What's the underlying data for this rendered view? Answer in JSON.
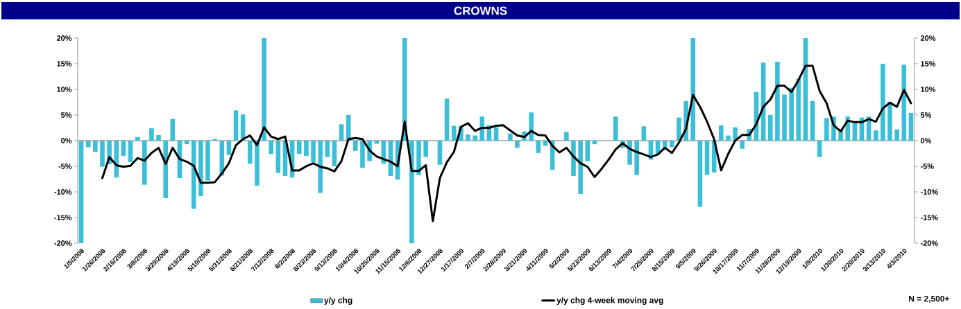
{
  "chart_data": {
    "type": "bar",
    "title": "CROWNS",
    "categories": [
      "1/5/2008",
      null,
      null,
      "1/26/2008",
      null,
      null,
      "2/16/2008",
      null,
      null,
      "3/8/2008",
      null,
      null,
      "3/29/2008",
      null,
      null,
      "4/19/2008",
      null,
      null,
      "5/10/2008",
      null,
      null,
      "5/31/2008",
      null,
      null,
      "6/21/2008",
      null,
      null,
      "7/12/2008",
      null,
      null,
      "8/2/2008",
      null,
      null,
      "8/23/2008",
      null,
      null,
      "9/13/2008",
      null,
      null,
      "10/4/2008",
      null,
      null,
      "10/25/2008",
      null,
      null,
      "11/15/2008",
      null,
      null,
      "12/6/2008",
      null,
      null,
      "12/27/2008",
      null,
      null,
      "1/17/2009",
      null,
      null,
      "2/7/2009",
      null,
      null,
      "2/28/2009",
      null,
      null,
      "3/21/2009",
      null,
      null,
      "4/11/2009",
      null,
      null,
      "5/2/2009",
      null,
      null,
      "5/23/2009",
      null,
      null,
      "6/13/2009",
      null,
      null,
      "7/4/2009",
      null,
      null,
      "7/25/2009",
      null,
      null,
      "8/15/2009",
      null,
      null,
      "9/5/2009",
      null,
      null,
      "9/26/2009",
      null,
      null,
      "10/17/2009",
      null,
      null,
      "11/7/2009",
      null,
      null,
      "11/28/2009",
      null,
      null,
      "12/19/2009",
      null,
      null,
      "1/9/2010",
      null,
      null,
      "1/30/2010",
      null,
      null,
      "2/20/2010",
      null,
      null,
      "3/13/2010",
      null,
      null,
      "4/3/2010",
      null
    ],
    "series": [
      {
        "name": "y/y chg",
        "color": "#3bbfd8",
        "values": [
          -20,
          -1.3,
          -2.2,
          -5.1,
          -4.6,
          -7.2,
          -3.0,
          -4.2,
          0.7,
          -8.6,
          2.4,
          1.1,
          -11.2,
          4.2,
          -7.3,
          -0.7,
          -13.3,
          -10.8,
          -7.8,
          0.3,
          -6.8,
          -2.8,
          5.9,
          5.1,
          -4.5,
          -8.8,
          20,
          -2.6,
          -6.3,
          -6.9,
          -7.2,
          -2.6,
          -3.0,
          -4.2,
          -10.2,
          -3.2,
          -5.0,
          3.2,
          5.0,
          -2.0,
          -5.3,
          -4.0,
          -0.6,
          -4.5,
          -6.9,
          -7.6,
          20,
          -20,
          -6.7,
          -3.2,
          null,
          -4.7,
          8.2,
          2.9,
          2.8,
          1.2,
          1.0,
          4.7,
          3.0,
          2.6,
          null,
          1.4,
          -1.4,
          1.8,
          5.5,
          -2.4,
          -1.0,
          -5.7,
          null,
          1.7,
          -6.9,
          -10.4,
          -4.0,
          -0.7,
          null,
          null,
          4.7,
          -1.4,
          -4.7,
          -6.7,
          2.8,
          -3.7,
          -2.8,
          -1.5,
          -1.3,
          4.5,
          7.7,
          20,
          -12.9,
          -6.7,
          -6.2,
          3.0,
          1.0,
          2.6,
          -1.6,
          2.3,
          9.5,
          15.2,
          5.0,
          15.4,
          9.0,
          10.3,
          12.1,
          20,
          7.7,
          -3.2,
          4.4,
          4.7,
          2.3,
          4.7,
          3.7,
          4.5,
          4.7,
          2.0,
          15.0,
          7.6,
          2.2,
          14.8,
          5.4
        ]
      },
      {
        "name": "y/y chg 4-week moving avg",
        "type": "line",
        "color": "#000000",
        "values": [
          null,
          null,
          null,
          -7.3,
          -3.2,
          -4.8,
          -5.1,
          -4.9,
          -3.4,
          -3.9,
          -2.4,
          -1.4,
          -4.5,
          -1.4,
          -3.6,
          -4.1,
          -4.9,
          -8.2,
          -8.2,
          -8.1,
          -6.4,
          -4.4,
          -0.9,
          0.3,
          1.0,
          -0.9,
          2.6,
          0.8,
          0.3,
          0.8,
          -5.8,
          -5.8,
          -5.0,
          -4.4,
          -5.1,
          -5.4,
          -6.0,
          -4.0,
          0.3,
          0.5,
          0.3,
          -1.9,
          -3.1,
          -3.6,
          -4.1,
          -5.0,
          3.7,
          -5.9,
          -5.9,
          -4.8,
          -15.7,
          -7.3,
          -4.2,
          -2.2,
          2.7,
          3.4,
          1.9,
          2.5,
          2.5,
          2.9,
          3.0,
          2.0,
          1.0,
          0.7,
          1.9,
          1.1,
          1.0,
          -1.0,
          -2.3,
          -1.4,
          -3.1,
          -4.4,
          -5.1,
          -7.1,
          -5.5,
          -3.7,
          -1.7,
          -0.5,
          -1.6,
          -2.2,
          -2.7,
          -3.2,
          -2.7,
          -1.4,
          -2.4,
          -0.4,
          2.3,
          8.9,
          6.6,
          3.7,
          0.3,
          -5.8,
          -2.6,
          0.0,
          1.1,
          1.1,
          3.2,
          6.6,
          8.0,
          10.7,
          10.7,
          9.5,
          11.8,
          14.6,
          14.6,
          9.7,
          7.3,
          3.0,
          1.8,
          3.9,
          3.6,
          3.6,
          4.2,
          3.7,
          6.3,
          7.4,
          6.6,
          9.9,
          7.3
        ]
      }
    ],
    "ylim": [
      -20,
      20
    ],
    "yticks": [
      {
        "value": -20,
        "label": "-20%"
      },
      {
        "value": -15,
        "label": "-15%"
      },
      {
        "value": -10,
        "label": "-10%"
      },
      {
        "value": -5,
        "label": "-5%"
      },
      {
        "value": 0,
        "label": "0%"
      },
      {
        "value": 5,
        "label": "5%"
      },
      {
        "value": 10,
        "label": "10%"
      },
      {
        "value": 15,
        "label": "15%"
      },
      {
        "value": 20,
        "label": "20%"
      }
    ],
    "y2lim": [
      -20,
      20
    ],
    "y2ticks": [
      {
        "value": -20,
        "label": "-20%"
      },
      {
        "value": -15,
        "label": "-15%"
      },
      {
        "value": -10,
        "label": "-10%"
      },
      {
        "value": -5,
        "label": "-5%"
      },
      {
        "value": 0,
        "label": "0%"
      },
      {
        "value": 5,
        "label": "5%"
      },
      {
        "value": 10,
        "label": "10%"
      },
      {
        "value": 15,
        "label": "15%"
      },
      {
        "value": 20,
        "label": "20%"
      }
    ],
    "legend": "bottom",
    "annotations": [
      "N = 2,500+"
    ]
  }
}
